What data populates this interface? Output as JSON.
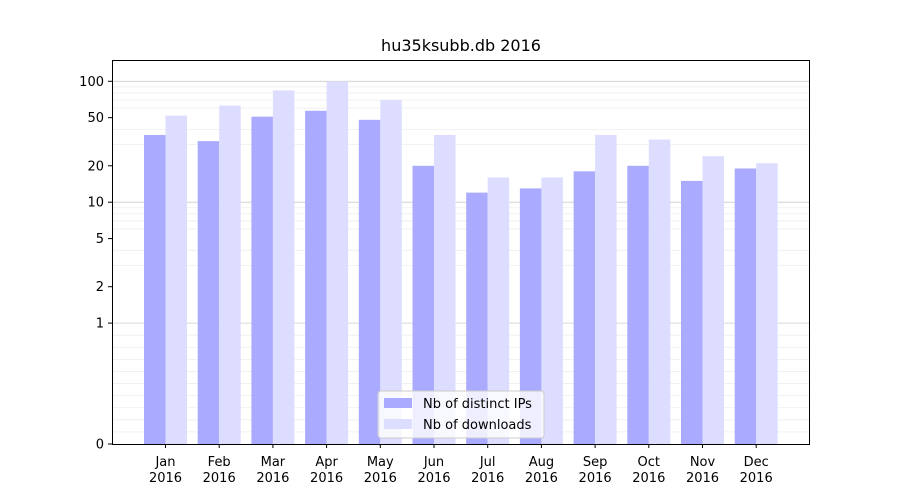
{
  "chart_data": {
    "type": "bar",
    "title": "hu35ksubb.db 2016",
    "xlabel": "",
    "ylabel": "",
    "scale": "symlog",
    "ylim": [
      0,
      150
    ],
    "yticks": [
      0,
      1,
      2,
      5,
      10,
      20,
      50,
      100
    ],
    "ytick_labels": [
      "0",
      "1",
      "2",
      "5",
      "10",
      "20",
      "50",
      "100"
    ],
    "grid": "horizontal major and minor",
    "legend_position": "bottom-center",
    "categories": [
      [
        "Jan",
        "2016"
      ],
      [
        "Feb",
        "2016"
      ],
      [
        "Mar",
        "2016"
      ],
      [
        "Apr",
        "2016"
      ],
      [
        "May",
        "2016"
      ],
      [
        "Jun",
        "2016"
      ],
      [
        "Jul",
        "2016"
      ],
      [
        "Aug",
        "2016"
      ],
      [
        "Sep",
        "2016"
      ],
      [
        "Oct",
        "2016"
      ],
      [
        "Nov",
        "2016"
      ],
      [
        "Dec",
        "2016"
      ]
    ],
    "series": [
      {
        "name": "Nb of distinct IPs",
        "color": "#aaaaff",
        "values": [
          36,
          32,
          51,
          57,
          48,
          20,
          12,
          13,
          18,
          20,
          15,
          19
        ]
      },
      {
        "name": "Nb of downloads",
        "color": "#ddddff",
        "values": [
          52,
          63,
          84,
          100,
          70,
          36,
          16,
          16,
          36,
          33,
          24,
          21
        ]
      }
    ]
  }
}
